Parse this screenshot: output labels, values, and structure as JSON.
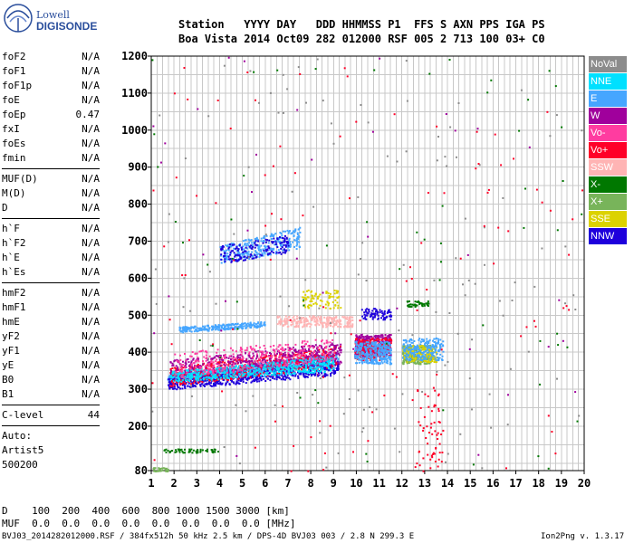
{
  "logo": {
    "line1": "Lowell",
    "line2": "DIGISONDE"
  },
  "header": {
    "row1": "Station   YYYY DAY   DDD HHMMSS P1  FFS S AXN PPS IGA PS",
    "row2": "Boa Vista 2014 Oct09 282 012000 RSF 005 2 713 100 03+ C0"
  },
  "params": {
    "group1": [
      {
        "k": "foF2",
        "v": "N/A"
      },
      {
        "k": "foF1",
        "v": "N/A"
      },
      {
        "k": "foF1p",
        "v": "N/A"
      },
      {
        "k": "foE",
        "v": "N/A"
      },
      {
        "k": "foEp",
        "v": "0.47"
      },
      {
        "k": "fxI",
        "v": "N/A"
      },
      {
        "k": "foEs",
        "v": "N/A"
      },
      {
        "k": "fmin",
        "v": "N/A"
      }
    ],
    "group2": [
      {
        "k": "MUF(D)",
        "v": "N/A"
      },
      {
        "k": "M(D)",
        "v": "N/A"
      },
      {
        "k": "D",
        "v": "N/A"
      }
    ],
    "group3": [
      {
        "k": "h`F",
        "v": "N/A"
      },
      {
        "k": "h`F2",
        "v": "N/A"
      },
      {
        "k": "h`E",
        "v": "N/A"
      },
      {
        "k": "h`Es",
        "v": "N/A"
      }
    ],
    "group4": [
      {
        "k": "hmF2",
        "v": "N/A"
      },
      {
        "k": "hmF1",
        "v": "N/A"
      },
      {
        "k": "hmE",
        "v": "N/A"
      },
      {
        "k": "yF2",
        "v": "N/A"
      },
      {
        "k": "yF1",
        "v": "N/A"
      },
      {
        "k": "yE",
        "v": "N/A"
      },
      {
        "k": "B0",
        "v": "N/A"
      },
      {
        "k": "B1",
        "v": "N/A"
      }
    ],
    "clevel": {
      "k": "C-level",
      "v": "44"
    },
    "auto": [
      "Auto:",
      "Artist5",
      "500200"
    ]
  },
  "footer": {
    "d_row": "D    100  200  400  600  800 1000 1500 3000 [km]",
    "muf_row": "MUF  0.0  0.0  0.0  0.0  0.0  0.0  0.0  0.0 [MHz]",
    "file_line": "BVJ03_2014282012000.RSF / 384fx512h 50 kHz 2.5 km / DPS-4D BVJ03 003 / 2.8 N 299.3 E",
    "version": "Ion2Png v. 1.3.17"
  },
  "legend": [
    {
      "name": "NoVal",
      "color": "#8c8c8c"
    },
    {
      "name": "NNE",
      "color": "#00e0ff"
    },
    {
      "name": "E",
      "color": "#46a6ff"
    },
    {
      "name": "W",
      "color": "#a0009c"
    },
    {
      "name": "Vo-",
      "color": "#ff3ca0"
    },
    {
      "name": "Vo+",
      "color": "#ff0028"
    },
    {
      "name": "SSW",
      "color": "#ffb4b4"
    },
    {
      "name": "X-",
      "color": "#007800"
    },
    {
      "name": "X+",
      "color": "#78b45a"
    },
    {
      "name": "SSE",
      "color": "#dcd200"
    },
    {
      "name": "NNW",
      "color": "#1e00dc"
    }
  ],
  "chart_data": {
    "type": "scatter",
    "xlabel": "",
    "ylabel": "",
    "xlim": [
      1,
      20
    ],
    "ylim": [
      80,
      1200
    ],
    "x_ticks": [
      1,
      2,
      3,
      4,
      5,
      6,
      7,
      8,
      9,
      10,
      11,
      12,
      13,
      14,
      15,
      16,
      17,
      18,
      19,
      20
    ],
    "y_ticks": [
      80,
      200,
      300,
      400,
      500,
      600,
      700,
      800,
      900,
      1000,
      1100,
      1200
    ],
    "grid": true,
    "legend_position": "right",
    "clusters": [
      {
        "series": "E",
        "x_range": [
          1.7,
          9.2
        ],
        "h_start": [
          320,
          340
        ],
        "h_end": [
          370,
          400
        ],
        "density": 900
      },
      {
        "series": "NNW",
        "x_range": [
          1.7,
          9.2
        ],
        "h_start": [
          300,
          330
        ],
        "h_end": [
          340,
          380
        ],
        "density": 600
      },
      {
        "series": "Vo+",
        "x_range": [
          1.8,
          9.3
        ],
        "h_start": [
          310,
          360
        ],
        "h_end": [
          360,
          420
        ],
        "density": 500
      },
      {
        "series": "W",
        "x_range": [
          1.8,
          9.3
        ],
        "h_start": [
          330,
          380
        ],
        "h_end": [
          370,
          430
        ],
        "density": 500
      },
      {
        "series": "NNE",
        "x_range": [
          1.8,
          9.0
        ],
        "h_start": [
          320,
          350
        ],
        "h_end": [
          350,
          390
        ],
        "density": 500
      },
      {
        "series": "Vo-",
        "x_range": [
          2.0,
          9.0
        ],
        "h_start": [
          330,
          400
        ],
        "h_end": [
          380,
          440
        ],
        "density": 300
      },
      {
        "series": "E",
        "x_range": [
          2.2,
          6.0
        ],
        "h_start": [
          455,
          470
        ],
        "h_end": [
          470,
          485
        ],
        "density": 250
      },
      {
        "series": "SSW",
        "x_range": [
          6.5,
          9.8
        ],
        "h_start": [
          470,
          500
        ],
        "h_end": [
          470,
          500
        ],
        "density": 250
      },
      {
        "series": "SSE",
        "x_range": [
          7.6,
          9.3
        ],
        "h_start": [
          520,
          570
        ],
        "h_end": [
          520,
          570
        ],
        "density": 80
      },
      {
        "series": "E",
        "x_range": [
          4.0,
          7.5
        ],
        "h_start": [
          640,
          690
        ],
        "h_end": [
          680,
          740
        ],
        "density": 300
      },
      {
        "series": "NNW",
        "x_range": [
          4.0,
          7.0
        ],
        "h_start": [
          640,
          690
        ],
        "h_end": [
          670,
          720
        ],
        "density": 150
      },
      {
        "series": "W",
        "x_range": [
          9.9,
          11.5
        ],
        "h_start": [
          390,
          450
        ],
        "h_end": [
          390,
          450
        ],
        "density": 400
      },
      {
        "series": "Vo+",
        "x_range": [
          9.9,
          11.5
        ],
        "h_start": [
          380,
          440
        ],
        "h_end": [
          380,
          440
        ],
        "density": 200
      },
      {
        "series": "E",
        "x_range": [
          9.9,
          11.5
        ],
        "h_start": [
          370,
          430
        ],
        "h_end": [
          370,
          430
        ],
        "density": 300
      },
      {
        "series": "NNW",
        "x_range": [
          10.2,
          11.5
        ],
        "h_start": [
          490,
          520
        ],
        "h_end": [
          490,
          520
        ],
        "density": 80
      },
      {
        "series": "X+",
        "x_range": [
          12.0,
          13.3
        ],
        "h_start": [
          370,
          420
        ],
        "h_end": [
          370,
          420
        ],
        "density": 250
      },
      {
        "series": "SSE",
        "x_range": [
          12.0,
          13.5
        ],
        "h_start": [
          375,
          420
        ],
        "h_end": [
          375,
          420
        ],
        "density": 150
      },
      {
        "series": "E",
        "x_range": [
          12.0,
          13.8
        ],
        "h_start": [
          380,
          440
        ],
        "h_end": [
          380,
          440
        ],
        "density": 200
      },
      {
        "series": "X-",
        "x_range": [
          12.2,
          13.2
        ],
        "h_start": [
          525,
          540
        ],
        "h_end": [
          525,
          540
        ],
        "density": 40
      },
      {
        "series": "X-",
        "x_range": [
          1.5,
          4.0
        ],
        "h_start": [
          130,
          140
        ],
        "h_end": [
          130,
          140
        ],
        "density": 60
      },
      {
        "series": "X+",
        "x_range": [
          1.0,
          1.8
        ],
        "h_start": [
          80,
          90
        ],
        "h_end": [
          80,
          90
        ],
        "density": 30
      },
      {
        "series": "Vo+",
        "x_range": [
          12.5,
          13.8
        ],
        "h_start": [
          80,
          300
        ],
        "h_end": [
          80,
          300
        ],
        "density": 60
      },
      {
        "series": "NoVal",
        "x_range": [
          1,
          20
        ],
        "h_start": [
          80,
          1200
        ],
        "h_end": [
          80,
          1200
        ],
        "density": 140
      },
      {
        "series": "Vo+",
        "x_range": [
          1,
          20
        ],
        "h_start": [
          80,
          1200
        ],
        "h_end": [
          80,
          1200
        ],
        "density": 110
      },
      {
        "series": "X-",
        "x_range": [
          1,
          20
        ],
        "h_start": [
          80,
          1200
        ],
        "h_end": [
          80,
          1200
        ],
        "density": 60
      },
      {
        "series": "W",
        "x_range": [
          1,
          20
        ],
        "h_start": [
          80,
          1200
        ],
        "h_end": [
          80,
          1200
        ],
        "density": 40
      }
    ]
  }
}
